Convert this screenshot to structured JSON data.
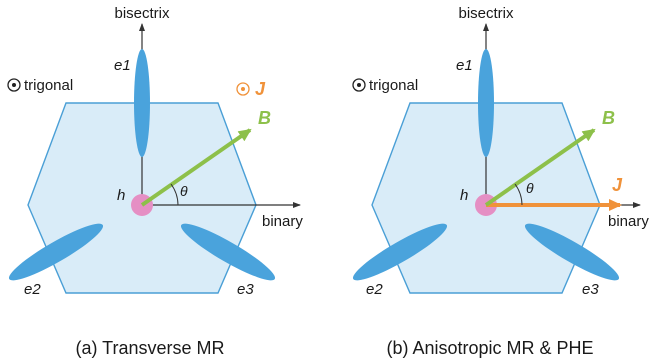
{
  "colors": {
    "hexagon_fill": "#d9ecf8",
    "hexagon_stroke": "#4a9fd6",
    "ellipse": "#4aa3dc",
    "hole": "#e58fc4",
    "B_arrow": "#8dc04a",
    "J_color": "#f0923a",
    "axis": "#333333"
  },
  "panels": [
    {
      "caption": "(a) Transverse MR",
      "axis_y_label": "bisectrix",
      "axis_x_label": "binary",
      "trigonal_label": "trigonal",
      "electron_labels": [
        "e1",
        "e2",
        "e3"
      ],
      "hole_label": "h",
      "angle_label": "θ",
      "B_label": "B",
      "J_label": "J",
      "J_direction": "out-of-plane (⊙)"
    },
    {
      "caption": "(b) Anisotropic MR & PHE",
      "axis_y_label": "bisectrix",
      "axis_x_label": "binary",
      "trigonal_label": "trigonal",
      "electron_labels": [
        "e1",
        "e2",
        "e3"
      ],
      "hole_label": "h",
      "angle_label": "θ",
      "B_label": "B",
      "J_label": "J",
      "J_direction": "along binary"
    }
  ]
}
